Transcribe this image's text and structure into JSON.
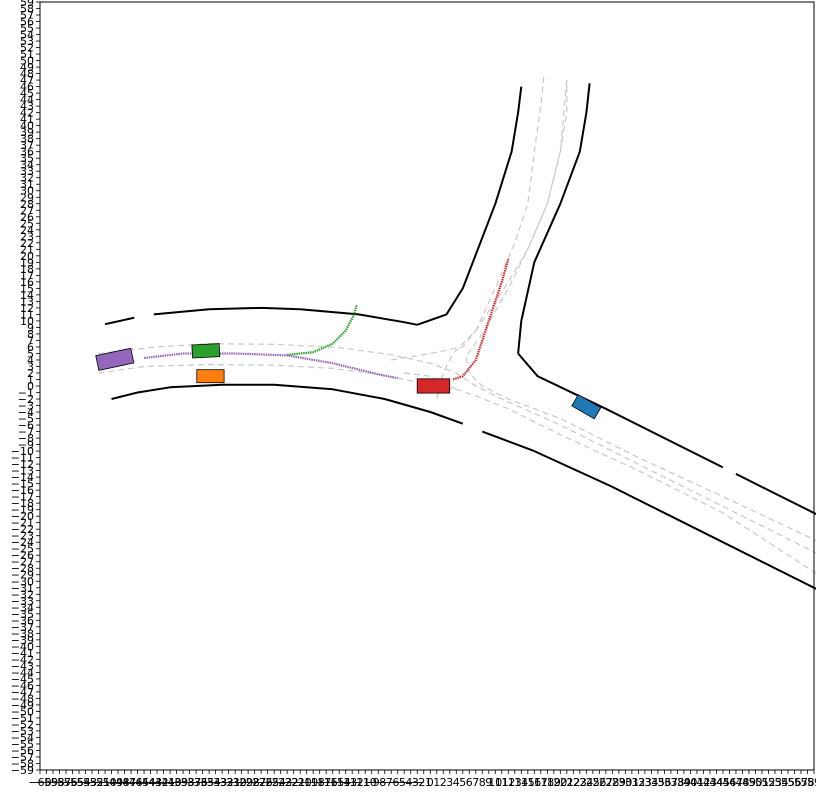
{
  "plot": {
    "x_range": [
      -60,
      59
    ],
    "y_range": [
      -59,
      59
    ],
    "x_ticks": [
      -60,
      -59,
      -58,
      -57,
      -56,
      -55,
      -54,
      -53,
      -52,
      -51,
      -50,
      -49,
      -48,
      -47,
      -46,
      -45,
      -44,
      -43,
      -42,
      -41,
      -40,
      -39,
      -38,
      -37,
      -36,
      -35,
      -34,
      -33,
      -32,
      -31,
      -30,
      -29,
      -28,
      -27,
      -26,
      -25,
      -24,
      -23,
      -22,
      -21,
      -20,
      -19,
      -18,
      -17,
      -16,
      -15,
      -14,
      -13,
      -12,
      -11,
      -10,
      -9,
      -8,
      -7,
      -6,
      -5,
      -4,
      -3,
      -2,
      -1,
      0,
      1,
      2,
      3,
      4,
      5,
      6,
      7,
      8,
      9,
      10,
      11,
      12,
      13,
      14,
      15,
      16,
      17,
      18,
      19,
      20,
      21,
      22,
      23,
      24,
      25,
      26,
      27,
      28,
      29,
      30,
      31,
      32,
      33,
      34,
      35,
      36,
      37,
      38,
      39,
      40,
      41,
      42,
      43,
      44,
      45,
      46,
      47,
      48,
      49,
      50,
      51,
      52,
      53,
      54,
      55,
      56,
      57,
      58,
      59
    ],
    "y_ticks": [
      -59,
      -58,
      -57,
      -56,
      -55,
      -54,
      -53,
      -52,
      -51,
      -50,
      -49,
      -48,
      -47,
      -46,
      -45,
      -44,
      -43,
      -42,
      -41,
      -40,
      -39,
      -38,
      -37,
      -36,
      -35,
      -34,
      -33,
      -32,
      -31,
      -30,
      -29,
      -28,
      -27,
      -26,
      -25,
      -24,
      -23,
      -22,
      -21,
      -20,
      -19,
      -18,
      -17,
      -16,
      -15,
      -14,
      -13,
      -12,
      -11,
      -10,
      -9,
      -8,
      -7,
      -6,
      -5,
      -4,
      -3,
      -2,
      -1,
      0,
      1,
      2,
      3,
      4,
      5,
      6,
      7,
      8,
      9,
      10,
      11,
      12,
      13,
      14,
      15,
      16,
      17,
      18,
      19,
      20,
      21,
      22,
      23,
      24,
      25,
      26,
      27,
      28,
      29,
      30,
      31,
      32,
      33,
      34,
      35,
      36,
      37,
      38,
      39,
      40,
      41,
      42,
      43,
      44,
      45,
      46,
      47,
      48,
      49,
      50,
      51,
      52,
      53,
      54,
      55,
      56,
      57,
      58,
      59
    ]
  },
  "road_edges": [
    [
      [
        -50,
        9.5
      ],
      [
        -45.5,
        10.5
      ]
    ],
    [
      [
        -42.5,
        11
      ],
      [
        -34,
        11.8
      ],
      [
        -26,
        12
      ],
      [
        -20,
        11.8
      ]
    ],
    [
      [
        -20,
        11.8
      ],
      [
        -11,
        11
      ],
      [
        -4,
        9.8
      ],
      [
        -2,
        9.4
      ]
    ],
    [
      [
        -2,
        9.4
      ],
      [
        2.5,
        11
      ],
      [
        5,
        15
      ],
      [
        10,
        28
      ],
      [
        12.5,
        36
      ],
      [
        13.5,
        42
      ],
      [
        14,
        46
      ]
    ],
    [
      [
        24.5,
        46.5
      ],
      [
        24,
        42
      ],
      [
        23,
        36
      ],
      [
        20,
        28
      ],
      [
        16,
        19
      ],
      [
        14,
        10
      ],
      [
        13.5,
        5
      ]
    ],
    [
      [
        13.5,
        5
      ],
      [
        16.5,
        1.5
      ],
      [
        27,
        -3.5
      ],
      [
        40,
        -10
      ],
      [
        45,
        -12.5
      ]
    ],
    [
      [
        47,
        -13.5
      ],
      [
        62,
        -21
      ]
    ],
    [
      [
        -49,
        -2
      ],
      [
        -45,
        -1
      ],
      [
        -40,
        -0.2
      ],
      [
        -32,
        0.2
      ],
      [
        -24,
        0.2
      ],
      [
        -15,
        -0.5
      ],
      [
        -7,
        -2
      ],
      [
        0,
        -4
      ],
      [
        5,
        -5.8
      ]
    ],
    [
      [
        8,
        -7
      ],
      [
        16,
        -10
      ],
      [
        28,
        -15.5
      ],
      [
        37,
        -20
      ],
      [
        45,
        -24
      ],
      [
        62,
        -32.5
      ]
    ]
  ],
  "lane_centers": [
    [
      [
        -51,
        5
      ],
      [
        -42,
        6
      ],
      [
        -34,
        6.5
      ],
      [
        -24,
        6.4
      ],
      [
        -14,
        5.9
      ],
      [
        -6,
        4.8
      ],
      [
        0,
        3.5
      ],
      [
        4,
        2
      ],
      [
        7,
        0
      ],
      [
        11,
        -2
      ],
      [
        20,
        -6
      ],
      [
        32,
        -12
      ],
      [
        45,
        -18.5
      ],
      [
        62,
        -27
      ]
    ],
    [
      [
        -51,
        2
      ],
      [
        -44,
        3
      ],
      [
        -34,
        3.3
      ],
      [
        -24,
        3.2
      ],
      [
        -15,
        2.7
      ],
      [
        -8,
        1.8
      ],
      [
        -3,
        0.8
      ],
      [
        0,
        0
      ],
      [
        4,
        -0.5
      ],
      [
        7,
        -1.5
      ],
      [
        12,
        -3.5
      ],
      [
        20,
        -7.5
      ],
      [
        32,
        -13
      ],
      [
        45,
        -19.5
      ],
      [
        62,
        -30.5
      ]
    ],
    [
      [
        -6,
        4
      ],
      [
        0,
        5
      ],
      [
        5,
        6
      ],
      [
        7,
        8.5
      ]
    ],
    [
      [
        7,
        8.5
      ],
      [
        12,
        16
      ],
      [
        15,
        21
      ],
      [
        18,
        28
      ],
      [
        20,
        36
      ],
      [
        21,
        42
      ],
      [
        21,
        47
      ]
    ],
    [
      [
        21,
        47
      ],
      [
        20,
        36
      ],
      [
        18,
        28
      ],
      [
        15,
        21
      ],
      [
        12,
        15
      ],
      [
        8,
        8
      ],
      [
        5.5,
        4.5
      ],
      [
        6,
        2
      ],
      [
        8,
        0
      ],
      [
        12,
        -2
      ],
      [
        20,
        -5
      ],
      [
        32,
        -11
      ],
      [
        45,
        -17
      ],
      [
        62,
        -25
      ]
    ],
    [
      [
        1,
        -2
      ],
      [
        2,
        2
      ],
      [
        3.5,
        5
      ],
      [
        7,
        8.5
      ],
      [
        10,
        15
      ],
      [
        13,
        22
      ],
      [
        15,
        28
      ],
      [
        16,
        36
      ],
      [
        17,
        43
      ],
      [
        17.5,
        48
      ]
    ],
    [
      [
        -4,
        2
      ],
      [
        0,
        1.5
      ],
      [
        4,
        -0.5
      ]
    ]
  ],
  "trajectories": [
    {
      "color": "#2ca02c",
      "points": [
        [
          -22,
          4.8
        ],
        [
          -18,
          5.2
        ],
        [
          -15,
          6.5
        ],
        [
          -13,
          8.5
        ],
        [
          -11.7,
          11
        ],
        [
          -11.3,
          12.5
        ]
      ]
    },
    {
      "color": "#9467bd",
      "points": [
        [
          -44,
          4.3
        ],
        [
          -38,
          5
        ],
        [
          -30,
          5
        ],
        [
          -22,
          4.7
        ],
        [
          -15,
          3.5
        ],
        [
          -8,
          1.8
        ],
        [
          -5,
          1.2
        ]
      ]
    },
    {
      "color": "#d62728",
      "points": [
        [
          3.5,
          1
        ],
        [
          5,
          1.5
        ],
        [
          7,
          4
        ],
        [
          9,
          10
        ],
        [
          11,
          16
        ],
        [
          12,
          19.5
        ]
      ]
    }
  ],
  "vehicles": [
    {
      "name": "vehicle-purple",
      "color": "#9467bd",
      "center": [
        -48.5,
        4.1
      ],
      "length": 5.5,
      "width": 2.3,
      "heading_deg": 12
    },
    {
      "name": "vehicle-green",
      "color": "#2ca02c",
      "center": [
        -34.5,
        5.4
      ],
      "length": 4.2,
      "width": 2.0,
      "heading_deg": 3
    },
    {
      "name": "vehicle-orange",
      "color": "#ff7f0e",
      "center": [
        -33.8,
        1.5
      ],
      "length": 4.2,
      "width": 2.0,
      "heading_deg": 0
    },
    {
      "name": "vehicle-red",
      "color": "#d62728",
      "center": [
        0.5,
        0
      ],
      "length": 5.0,
      "width": 2.2,
      "heading_deg": 0
    },
    {
      "name": "vehicle-blue",
      "color": "#1f77b4",
      "center": [
        24,
        -3.2
      ],
      "length": 4.0,
      "width": 2.0,
      "heading_deg": -30
    }
  ]
}
